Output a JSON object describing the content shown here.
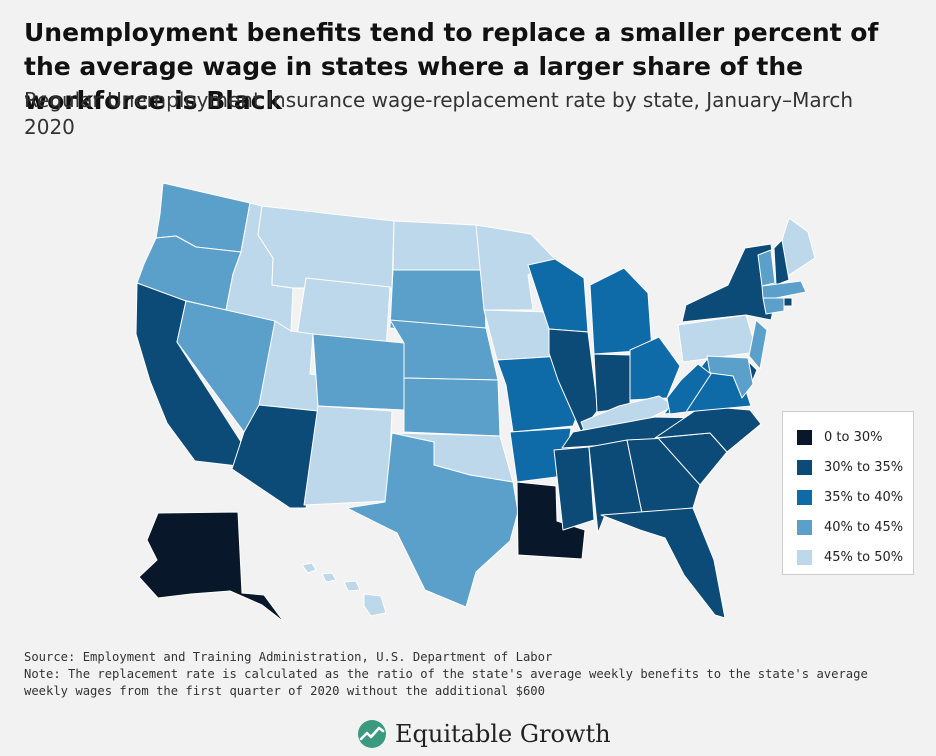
{
  "title": "Unemployment benefits tend to replace a smaller percent of the average wage in states where a larger share of the workforce is Black",
  "subtitle": "Regular Unemployment Insurance wage-replacement rate by state, January–March 2020",
  "colors": {
    "background": "#f2f2f2",
    "bin_0_30": "#08172a",
    "bin_30_35": "#0c4a77",
    "bin_35_40": "#0f6aa8",
    "bin_40_45": "#5b9fcb",
    "bin_45_50": "#bcd8ea"
  },
  "legend": {
    "items": [
      {
        "label": "0 to 30%",
        "color": "#08172a"
      },
      {
        "label": "30% to 35%",
        "color": "#0c4a77"
      },
      {
        "label": "35% to 40%",
        "color": "#0f6aa8"
      },
      {
        "label": "40% to 45%",
        "color": "#5b9fcb"
      },
      {
        "label": "45% to 50%",
        "color": "#bcd8ea"
      }
    ]
  },
  "map_data": {
    "WA": "40% to 45%",
    "OR": "40% to 45%",
    "CA": "30% to 35%",
    "NV": "40% to 45%",
    "ID": "45% to 50%",
    "MT": "45% to 50%",
    "WY": "45% to 50%",
    "UT": "45% to 50%",
    "AZ": "30% to 35%",
    "NM": "45% to 50%",
    "CO": "40% to 45%",
    "ND": "45% to 50%",
    "SD": "40% to 45%",
    "NE": "40% to 45%",
    "KS": "40% to 45%",
    "OK": "45% to 50%",
    "TX": "40% to 45%",
    "MN": "45% to 50%",
    "IA": "45% to 50%",
    "MO": "35% to 40%",
    "AR": "35% to 40%",
    "LA": "0 to 30%",
    "WI": "35% to 40%",
    "IL": "30% to 35%",
    "MI": "35% to 40%",
    "IN": "30% to 35%",
    "OH": "35% to 40%",
    "KY": "45% to 50%",
    "TN": "30% to 35%",
    "MS": "30% to 35%",
    "AL": "30% to 35%",
    "GA": "30% to 35%",
    "FL": "30% to 35%",
    "SC": "30% to 35%",
    "NC": "30% to 35%",
    "VA": "35% to 40%",
    "WV": "35% to 40%",
    "PA": "45% to 50%",
    "NY": "30% to 35%",
    "ME": "45% to 50%",
    "VT": "40% to 45%",
    "NH": "30% to 35%",
    "MA": "40% to 45%",
    "RI": "30% to 35%",
    "CT": "40% to 45%",
    "NJ": "40% to 45%",
    "DE": "30% to 35%",
    "MD": "40% to 45%",
    "AK": "0 to 30%",
    "HI": "45% to 50%"
  },
  "source": "Source: Employment and Training Administration, U.S. Department of Labor",
  "note": "Note: The replacement rate is calculated as the ratio of the state's average weekly benefits to the state's average weekly wages from the first quarter of 2020 without the additional $600",
  "logo": {
    "text": "Equitable Growth",
    "icon": "equitable-growth-logo-icon"
  }
}
